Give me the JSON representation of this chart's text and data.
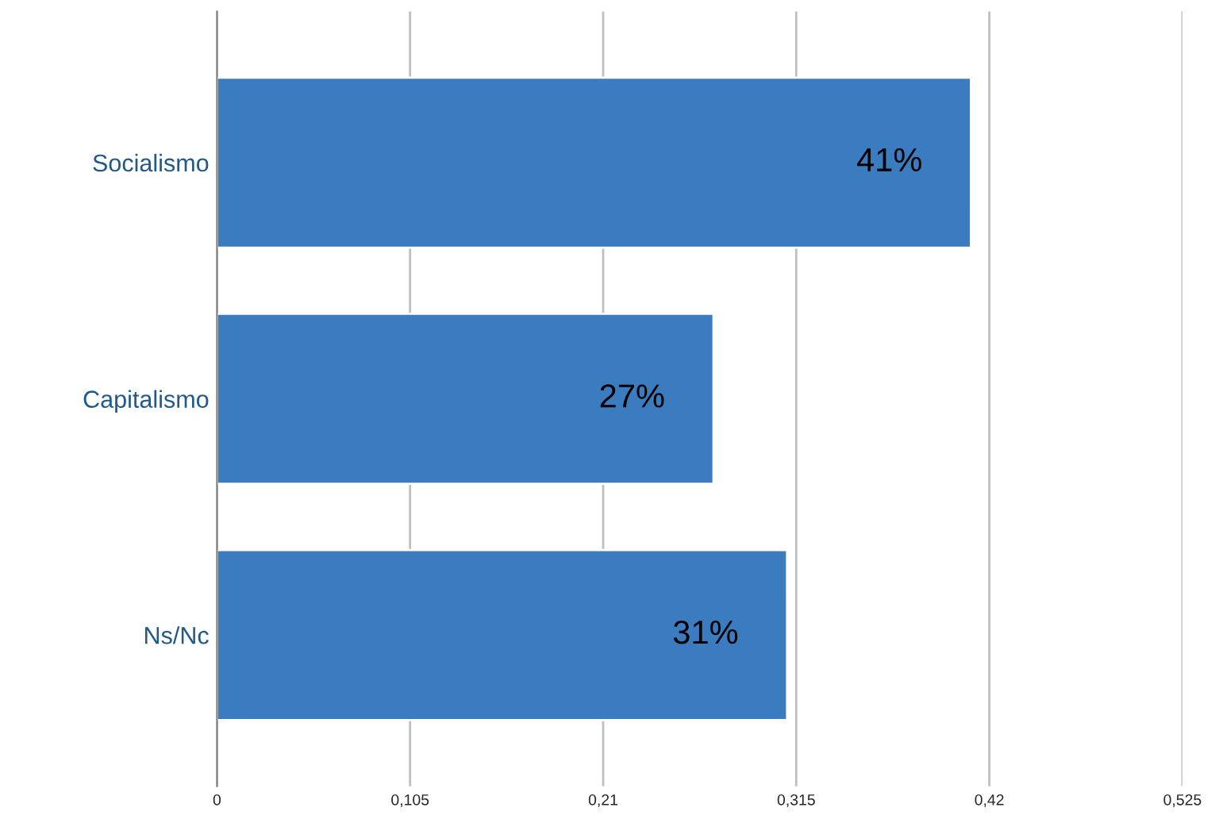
{
  "chart_data": {
    "type": "bar",
    "orientation": "horizontal",
    "categories": [
      "Socialismo",
      "Capitalismo",
      "Ns/Nc"
    ],
    "values": [
      0.41,
      0.27,
      0.31
    ],
    "value_labels": [
      "41%",
      "27%",
      "31%"
    ],
    "color": "#3b7bbf",
    "xlim": [
      0,
      0.525
    ],
    "xticks": [
      0,
      {
        "value": 0.105,
        "label": "0,105"
      },
      {
        "value": 0.21,
        "label": "0,21"
      },
      {
        "value": 0.315,
        "label": "0,315"
      },
      {
        "value": 0.42,
        "label": "0,42"
      },
      {
        "value": 0.525,
        "label": "0,525"
      }
    ],
    "grid": "x",
    "legend": false
  }
}
